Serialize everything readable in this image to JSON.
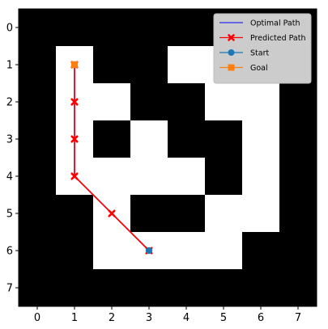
{
  "chart_data": {
    "type": "heatmap",
    "title": "",
    "xlabel": "",
    "ylabel": "",
    "x_ticks": [
      0,
      1,
      2,
      3,
      4,
      5,
      6,
      7
    ],
    "y_ticks": [
      0,
      1,
      2,
      3,
      4,
      5,
      6,
      7
    ],
    "xlim": [
      -0.5,
      7.5
    ],
    "ylim": [
      7.5,
      -0.5
    ],
    "grid": [
      [
        0,
        0,
        0,
        0,
        0,
        0,
        0,
        0
      ],
      [
        0,
        1,
        0,
        0,
        1,
        1,
        1,
        0
      ],
      [
        0,
        1,
        1,
        0,
        0,
        1,
        1,
        0
      ],
      [
        0,
        1,
        0,
        1,
        0,
        0,
        1,
        0
      ],
      [
        0,
        1,
        1,
        1,
        1,
        0,
        1,
        0
      ],
      [
        0,
        0,
        1,
        0,
        0,
        1,
        1,
        0
      ],
      [
        0,
        0,
        1,
        1,
        1,
        1,
        0,
        0
      ],
      [
        0,
        0,
        0,
        0,
        0,
        0,
        0,
        0
      ]
    ],
    "colors": {
      "free": "#ffffff",
      "wall": "#000000"
    },
    "series": [
      {
        "name": "Optimal Path",
        "color": "#0000ff",
        "marker": "none",
        "points": [
          [
            3,
            6
          ],
          [
            2,
            5
          ],
          [
            1,
            4
          ],
          [
            1,
            3
          ],
          [
            1,
            2
          ],
          [
            1,
            1
          ]
        ]
      },
      {
        "name": "Predicted Path",
        "color": "#ff0000",
        "marker": "x",
        "points": [
          [
            3,
            6
          ],
          [
            2,
            5
          ],
          [
            1,
            4
          ],
          [
            1,
            3
          ],
          [
            1,
            2
          ],
          [
            1,
            1
          ]
        ]
      },
      {
        "name": "Start",
        "color": "#1f77b4",
        "marker": "circle",
        "points": [
          [
            3,
            6
          ]
        ]
      },
      {
        "name": "Goal",
        "color": "#ff7f0e",
        "marker": "square",
        "points": [
          [
            1,
            1
          ]
        ]
      }
    ],
    "legend_position": "top-right"
  }
}
